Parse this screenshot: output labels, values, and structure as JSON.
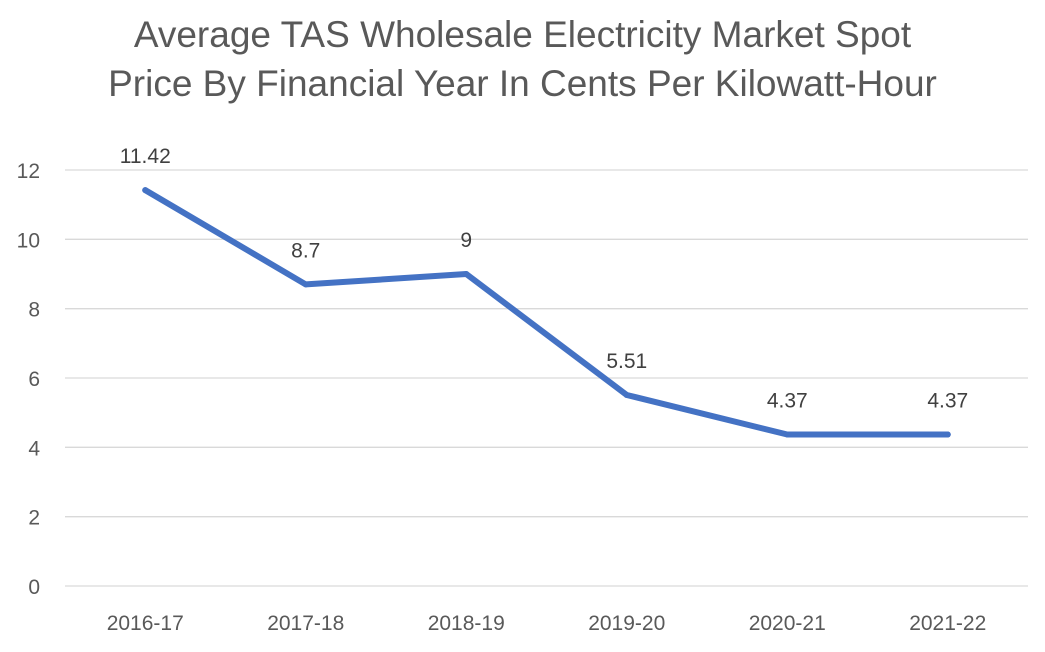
{
  "chart_data": {
    "type": "line",
    "title": [
      "Average TAS Wholesale Electricity Market Spot",
      "Price By Financial Year In Cents Per Kilowatt-Hour"
    ],
    "xlabel": "",
    "ylabel": "",
    "categories": [
      "2016-17",
      "2017-18",
      "2018-19",
      "2019-20",
      "2020-21",
      "2021-22"
    ],
    "series": [
      {
        "values": [
          11.42,
          8.7,
          9,
          5.51,
          4.37,
          4.37
        ],
        "data_labels": [
          "11.42",
          "8.7",
          "9",
          "5.51",
          "4.37",
          "4.37"
        ],
        "color": "#4472C4"
      }
    ],
    "ylim": [
      0,
      12
    ],
    "yticks": [
      "0",
      "2",
      "4",
      "6",
      "8",
      "10",
      "12"
    ],
    "grid": true,
    "legend": "none",
    "colors": {
      "line": "#4472C4",
      "grid": "#D9D9D9",
      "text": "#595959",
      "label": "#404040"
    }
  }
}
